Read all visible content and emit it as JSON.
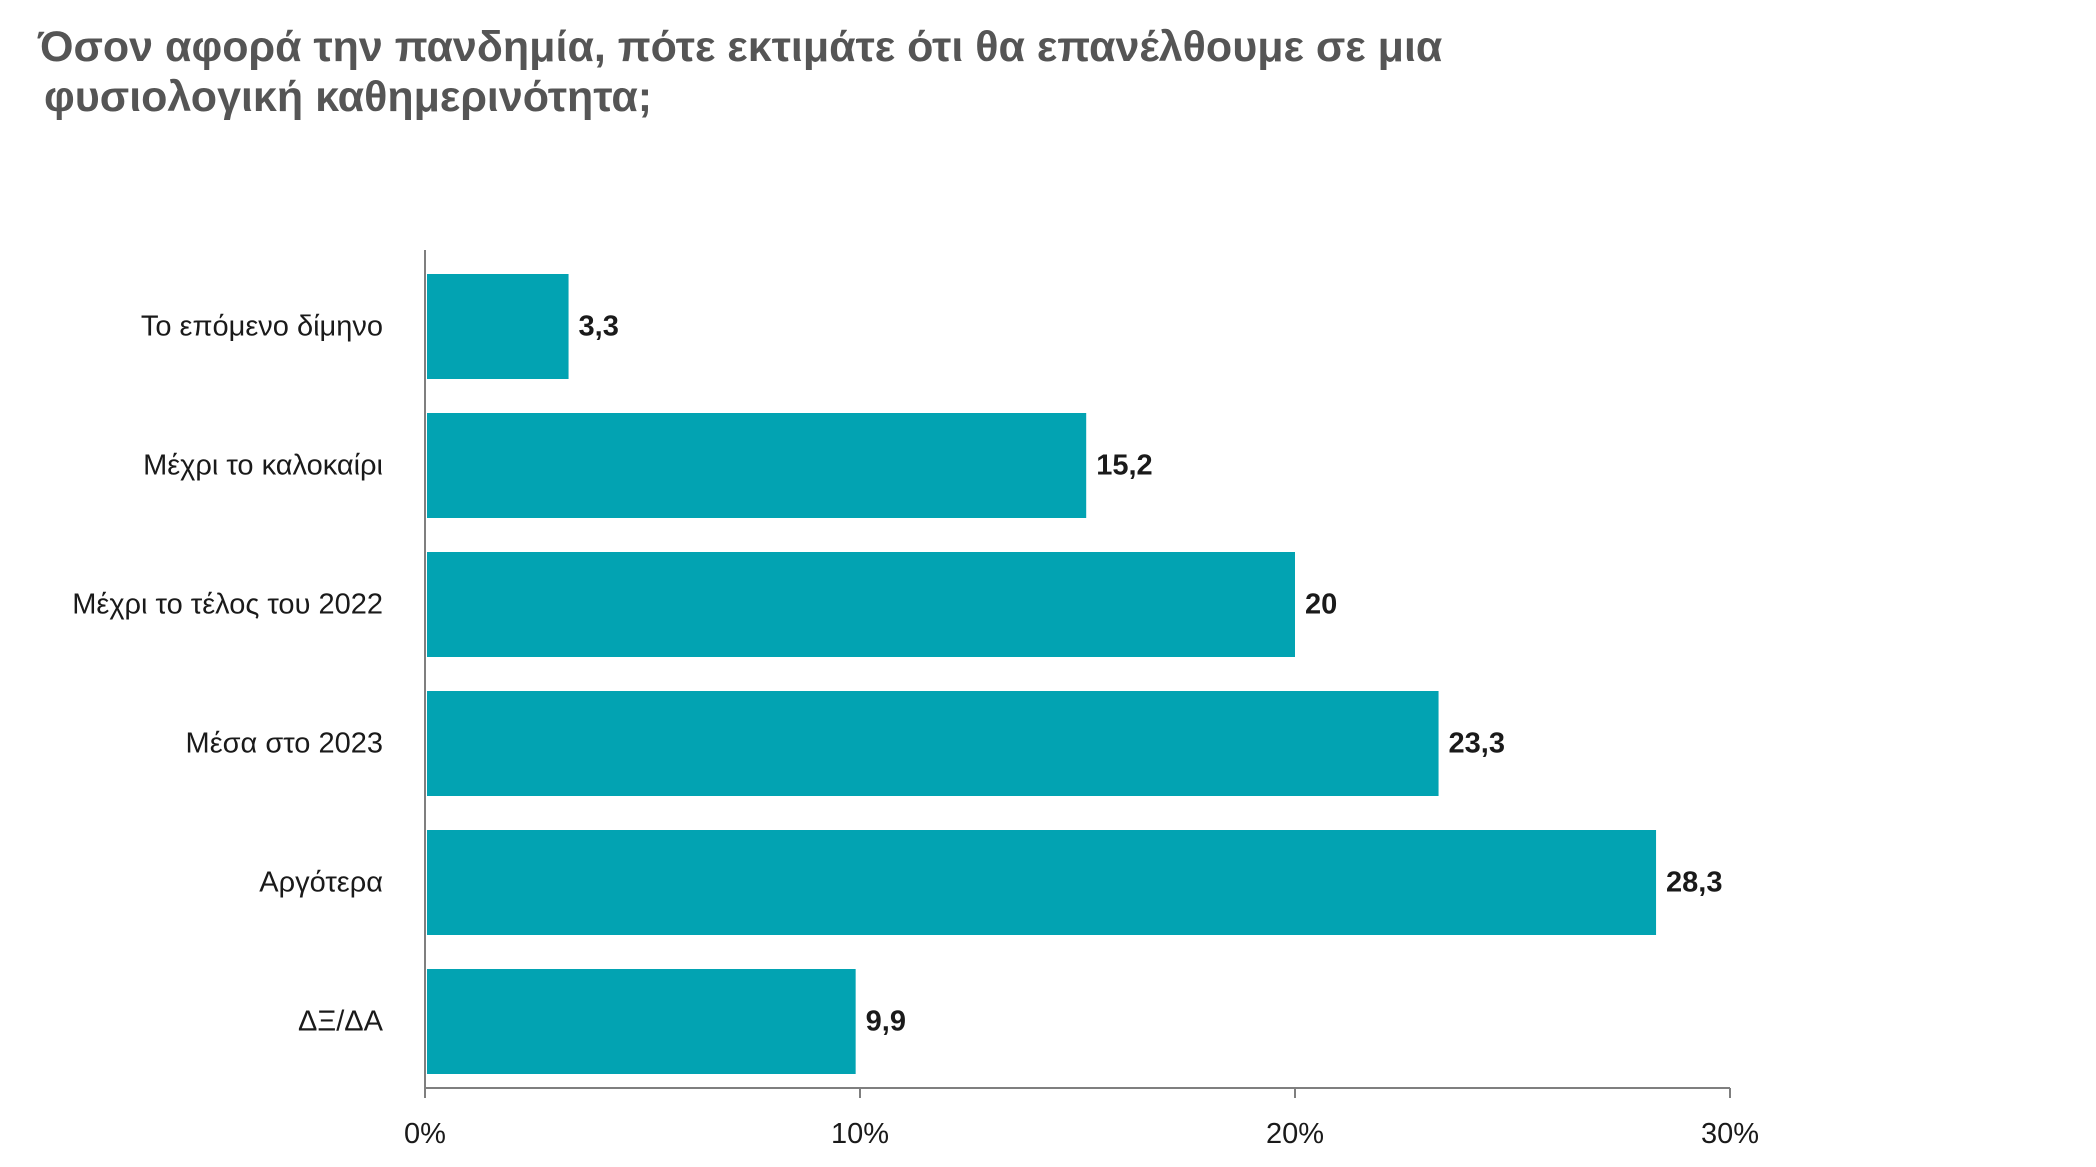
{
  "chart_data": {
    "type": "bar",
    "orientation": "horizontal",
    "title_lines": [
      "Όσον αφορά την πανδημία, πότε εκτιμάτε ότι θα επανέλθουμε σε μια",
      "φυσιολογική καθημερινότητα;"
    ],
    "categories": [
      "Το επόμενο δίμηνο",
      "Μέχρι το καλοκαίρι",
      "Μέχρι το τέλος του 2022",
      "Μέσα στο 2023",
      "Αργότερα",
      "ΔΞ/ΔΑ"
    ],
    "values": [
      3.3,
      15.2,
      20,
      23.3,
      28.3,
      9.9
    ],
    "value_labels": [
      "3,3",
      "15,2",
      "20",
      "23,3",
      "28,3",
      "9,9"
    ],
    "xlim": [
      0,
      30
    ],
    "x_ticks": [
      0,
      10,
      20,
      30
    ],
    "x_tick_labels": [
      "0%",
      "10%",
      "20%",
      "30%"
    ],
    "grid": false,
    "legend": "none",
    "bar_color": "#02A3B2",
    "axis_color": "#7f7f7f",
    "text_color": "#1a1a1a",
    "title_color": "#555555"
  }
}
